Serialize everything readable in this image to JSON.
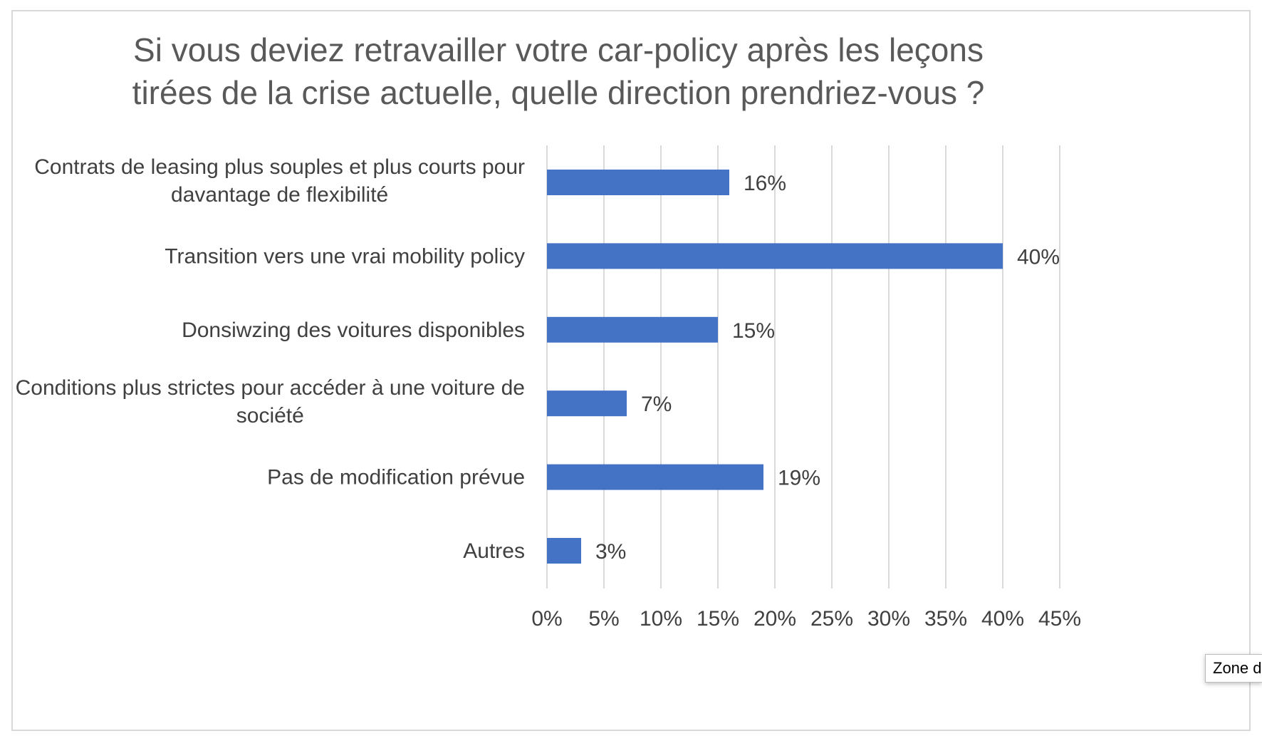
{
  "chart_data": {
    "type": "bar",
    "orientation": "horizontal",
    "title_lines": [
      "Si vous deviez retravailler votre car-policy après les leçons",
      "tirées de la crise actuelle, quelle direction prendriez-vous ?"
    ],
    "categories": [
      [
        "Contrats de leasing plus souples et plus courts pour",
        "davantage de flexibilité"
      ],
      [
        "Transition vers une vrai mobility policy"
      ],
      [
        "Donsiwzing des voitures disponibles"
      ],
      [
        "Conditions plus strictes pour accéder à une voiture de",
        "société"
      ],
      [
        "Pas de modification prévue"
      ],
      [
        "Autres"
      ]
    ],
    "values": [
      16,
      40,
      15,
      7,
      19,
      3
    ],
    "value_labels": [
      "16%",
      "40%",
      "15%",
      "7%",
      "19%",
      "3%"
    ],
    "xlim": [
      0,
      45
    ],
    "xticks": [
      0,
      5,
      10,
      15,
      20,
      25,
      30,
      35,
      40,
      45
    ],
    "xtick_labels": [
      "0%",
      "5%",
      "10%",
      "15%",
      "20%",
      "25%",
      "30%",
      "35%",
      "40%",
      "45%"
    ],
    "grid": "vertical",
    "legend": "none",
    "bar_color": "#4472c4",
    "grid_color": "#d9d9d9"
  },
  "tooltip": {
    "text": "Zone d"
  }
}
